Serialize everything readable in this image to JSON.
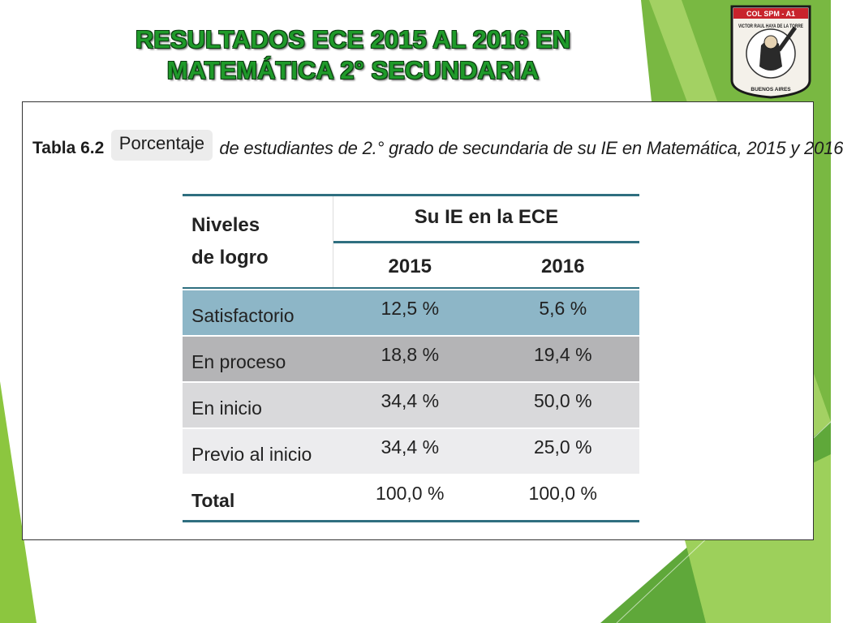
{
  "slide": {
    "title_line1": "RESULTADOS ECE 2015 AL 2016 EN",
    "title_line2": "MATEMÁTICA 2° SECUNDARIA"
  },
  "logo": {
    "top_text": "COL SPM - A1",
    "arc_text": "VICTOR RAUL HAYA DE LA TORRE",
    "bottom_text": "BUENOS AIRES"
  },
  "table_caption": {
    "label": "Tabla 6.2",
    "highlight": "Porcentaje",
    "rest": "de estudiantes de 2.° grado de secundaria de su IE en Matemática, 2015 y 2016"
  },
  "table": {
    "row_header_line1": "Niveles",
    "row_header_line2": "de logro",
    "group_header": "Su IE en la ECE",
    "years": [
      "2015",
      "2016"
    ],
    "rows": [
      {
        "label": "Satisfactorio",
        "v2015": "12,5 %",
        "v2016": "5,6 %",
        "bg": "#8db6c7"
      },
      {
        "label": "En proceso",
        "v2015": "18,8 %",
        "v2016": "19,4 %",
        "bg": "#b4b4b6"
      },
      {
        "label": "En inicio",
        "v2015": "34,4 %",
        "v2016": "50,0 %",
        "bg": "#d9d9db"
      },
      {
        "label": "Previo al inicio",
        "v2015": "34,4 %",
        "v2016": "25,0 %",
        "bg": "#ececee"
      },
      {
        "label": "Total",
        "v2015": "100,0 %",
        "v2016": "100,0 %",
        "bg": "#ffffff"
      }
    ]
  },
  "colors": {
    "accent_green": "#8cc63f",
    "title_green": "#1f9a2a",
    "table_rule": "#2f6f80"
  }
}
